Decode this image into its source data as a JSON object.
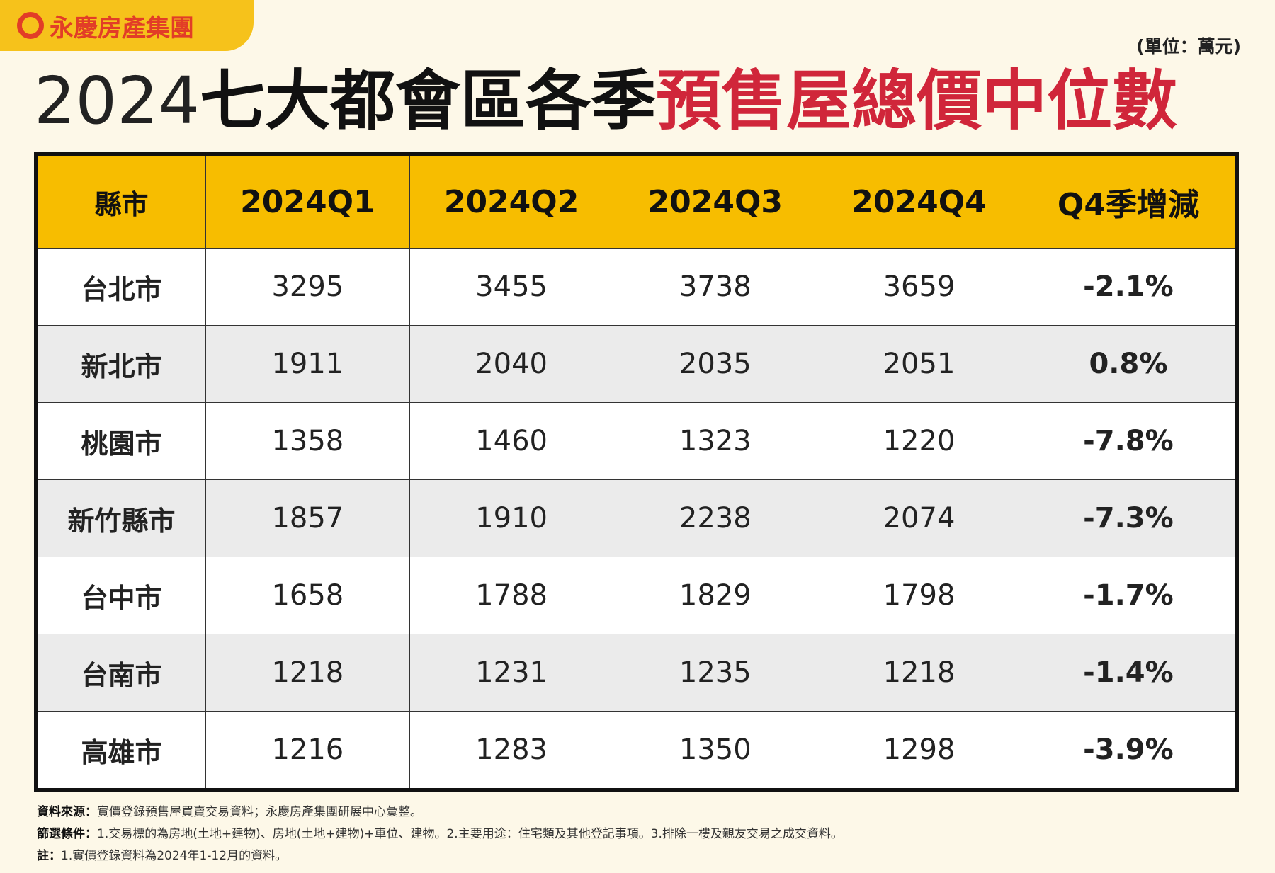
{
  "logo": "永慶房產集團",
  "unit": "(單位：萬元)",
  "title": {
    "year": "2024",
    "black": "七大都會區各季",
    "red": "預售屋總價中位數"
  },
  "table": {
    "header": [
      "縣市",
      "2024Q1",
      "2024Q2",
      "2024Q3",
      "2024Q4",
      "Q4季增減"
    ],
    "rows": [
      [
        "台北市",
        "3295",
        "3455",
        "3738",
        "3659",
        "-2.1%"
      ],
      [
        "新北市",
        "1911",
        "2040",
        "2035",
        "2051",
        "0.8%"
      ],
      [
        "桃園市",
        "1358",
        "1460",
        "1323",
        "1220",
        "-7.8%"
      ],
      [
        "新竹縣市",
        "1857",
        "1910",
        "2238",
        "2074",
        "-7.3%"
      ],
      [
        "台中市",
        "1658",
        "1788",
        "1829",
        "1798",
        "-1.7%"
      ],
      [
        "台南市",
        "1218",
        "1231",
        "1235",
        "1218",
        "-1.4%"
      ],
      [
        "高雄市",
        "1216",
        "1283",
        "1350",
        "1298",
        "-3.9%"
      ]
    ]
  },
  "notes": [
    {
      "label": "資料來源：",
      "text": "實價登錄預售屋買賣交易資料；永慶房產集團研展中心彙整。"
    },
    {
      "label": "篩選條件：",
      "text": "1.交易標的為房地(土地+建物)、房地(土地+建物)+車位、建物。2.主要用途：住宅類及其他登記事項。3.排除一樓及親友交易之成交資料。"
    },
    {
      "label": "註：",
      "text": "1.實價登錄資料為2024年1-12月的資料。"
    }
  ]
}
